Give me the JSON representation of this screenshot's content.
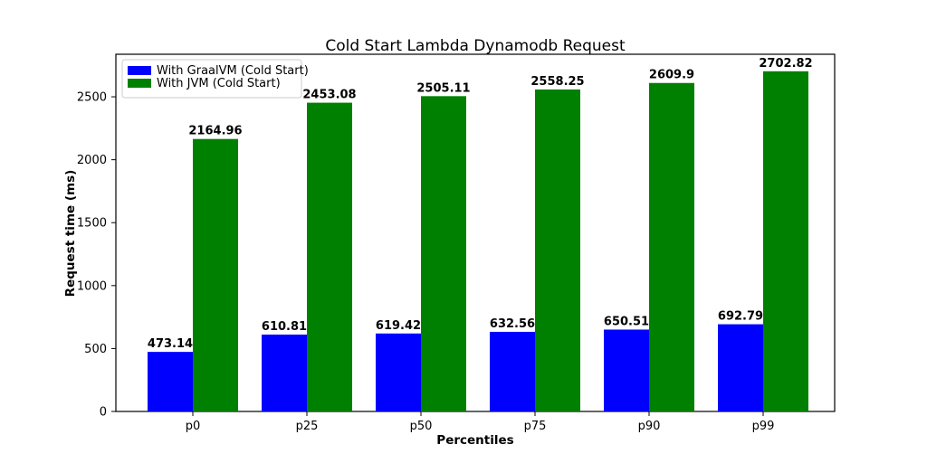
{
  "chart_data": {
    "type": "bar",
    "title": "Cold Start Lambda Dynamodb Request",
    "xlabel": "Percentiles",
    "ylabel": "Request time (ms)",
    "categories": [
      "p0",
      "p25",
      "p50",
      "p75",
      "p90",
      "p99"
    ],
    "series": [
      {
        "name": "With GraalVM (Cold Start)",
        "color": "#0000ff",
        "values": [
          473.14,
          610.81,
          619.42,
          632.56,
          650.51,
          692.79
        ]
      },
      {
        "name": "With JVM (Cold Start)",
        "color": "#008000",
        "values": [
          2164.96,
          2453.08,
          2505.11,
          2558.25,
          2609.9,
          2702.82
        ]
      }
    ],
    "yticks": [
      0,
      500,
      1000,
      1500,
      2000,
      2500
    ],
    "ylim": [
      0,
      2838
    ],
    "grid": false,
    "legend_position": "upper left",
    "bar_value_labels_bold": true,
    "background_color": "#ffffff",
    "spine_color": "#000000"
  }
}
